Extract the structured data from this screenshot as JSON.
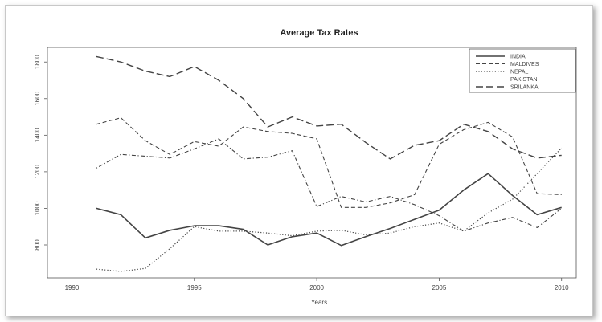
{
  "chart_data": {
    "type": "line",
    "title": "Average Tax Rates",
    "xlabel": "Years",
    "ylabel": "",
    "xlim": [
      1989,
      2010.6
    ],
    "ylim": [
      620,
      1880
    ],
    "xticks": [
      1990,
      1995,
      2000,
      2005,
      2010
    ],
    "yticks": [
      800,
      1000,
      1200,
      1400,
      1600,
      1800
    ],
    "grid": false,
    "legend_position": "top-right",
    "x": [
      1991,
      1992,
      1993,
      1994,
      1995,
      1996,
      1997,
      1998,
      1999,
      2000,
      2001,
      2002,
      2003,
      2004,
      2005,
      2006,
      2007,
      2008,
      2009,
      2010
    ],
    "series": [
      {
        "name": "INDIA",
        "dash": "solid",
        "width": 1.6,
        "values": [
          1000,
          965,
          838,
          880,
          905,
          905,
          885,
          800,
          845,
          865,
          797,
          845,
          890,
          940,
          990,
          1100,
          1190,
          1070,
          965,
          1005
        ]
      },
      {
        "name": "MALDIVES",
        "dash": "dashed",
        "width": 1.1,
        "values": [
          1460,
          1495,
          1370,
          1295,
          1365,
          1340,
          1445,
          1420,
          1410,
          1380,
          1005,
          1005,
          1030,
          1075,
          1350,
          1430,
          1470,
          1390,
          1080,
          1075
        ]
      },
      {
        "name": "NEPAL",
        "dash": "dotted",
        "width": 1.2,
        "values": [
          668,
          655,
          672,
          780,
          900,
          875,
          875,
          865,
          850,
          875,
          880,
          855,
          865,
          900,
          920,
          875,
          975,
          1050,
          1190,
          1330
        ]
      },
      {
        "name": "PAKISTAN",
        "dash": "dotdash",
        "width": 1.1,
        "values": [
          1220,
          1295,
          1285,
          1275,
          1325,
          1380,
          1270,
          1280,
          1315,
          1010,
          1065,
          1035,
          1065,
          1020,
          960,
          875,
          920,
          950,
          895,
          1000
        ]
      },
      {
        "name": "SRILANKA",
        "dash": "longdash",
        "width": 1.4,
        "values": [
          1830,
          1800,
          1750,
          1720,
          1775,
          1700,
          1600,
          1445,
          1500,
          1450,
          1460,
          1360,
          1270,
          1345,
          1370,
          1460,
          1420,
          1325,
          1275,
          1290
        ]
      }
    ]
  }
}
